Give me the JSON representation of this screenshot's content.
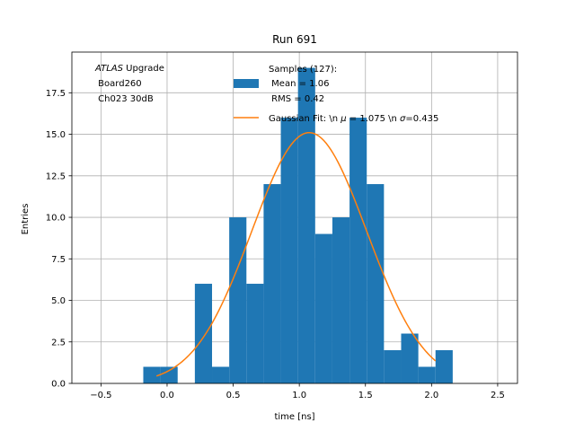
{
  "chart_data": {
    "type": "bar",
    "title": "Run 691",
    "xlabel": "time [ns]",
    "ylabel": "Entries",
    "xlim": [
      -0.72,
      2.65
    ],
    "ylim": [
      0,
      19.95
    ],
    "grid": true,
    "x_ticks": [
      -0.5,
      0.0,
      0.5,
      1.0,
      1.5,
      2.0,
      2.5
    ],
    "x_tick_labels": [
      "−0.5",
      "0.0",
      "0.5",
      "1.0",
      "1.5",
      "2.0",
      "2.5"
    ],
    "y_ticks": [
      0.0,
      2.5,
      5.0,
      7.5,
      10.0,
      12.5,
      15.0,
      17.5
    ],
    "y_tick_labels": [
      "0.0",
      "2.5",
      "5.0",
      "7.5",
      "10.0",
      "12.5",
      "15.0",
      "17.5"
    ],
    "bin_edges": [
      -0.18,
      -0.05,
      0.08,
      0.21,
      0.34,
      0.47,
      0.6,
      0.73,
      0.86,
      0.99,
      1.12,
      1.25,
      1.38,
      1.51,
      1.64,
      1.77,
      1.9,
      2.03,
      2.16
    ],
    "counts": [
      1,
      1,
      0,
      6,
      1,
      10,
      6,
      12,
      16,
      19,
      9,
      10,
      16,
      12,
      2,
      3,
      1,
      2
    ],
    "series": [
      {
        "name": "Samples (127):\n Mean = 1.06\n RMS = 0.42",
        "kind": "histogram",
        "color": "#1f77b4"
      },
      {
        "name": "Gaussian Fit: \\n μ = 1.075 \\n σ=0.435",
        "kind": "line",
        "color": "#ff7f0e",
        "fit": {
          "amplitude": 15.1,
          "mu": 1.075,
          "sigma": 0.435,
          "x_range": [
            -0.08,
            2.03
          ]
        }
      }
    ],
    "annotation": {
      "line1_italic": "ATLAS",
      "line1_rest": " Upgrade",
      "line2": " Board260",
      "line3": " Ch023 30dB"
    },
    "legend": {
      "position": "top-center",
      "hist_lines": [
        "Samples (127):",
        " Mean = 1.06",
        " RMS = 0.42"
      ],
      "fit_label_pre": "Gaussian Fit: \\n ",
      "fit_mu_symbol": "μ",
      "fit_label_mid": " = 1.075 \\n ",
      "fit_sigma_symbol": "σ",
      "fit_label_post": "=0.435"
    }
  }
}
